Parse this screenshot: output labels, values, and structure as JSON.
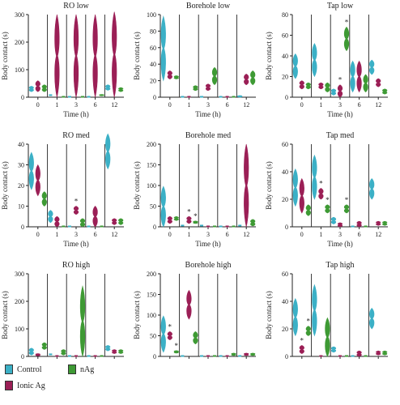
{
  "colors": {
    "control": "#3bb0c6",
    "ionic": "#9b1f56",
    "nag": "#3e9a34",
    "axis": "#222222"
  },
  "legend": {
    "items": [
      {
        "key": "control",
        "label": "Control"
      },
      {
        "key": "nag",
        "label": "nAg"
      },
      {
        "key": "ionic",
        "label": "Ionic Ag"
      }
    ]
  },
  "chart_data": [
    {
      "title": "RO low",
      "type": "violin",
      "ylabel": "Body contact (s)",
      "xlabel": "Time (h)",
      "categories": [
        "0",
        "1",
        "3",
        "6",
        "12"
      ],
      "ylim": [
        0,
        300
      ],
      "yticks": [
        0,
        100,
        200,
        300
      ],
      "series": [
        {
          "name": "Control",
          "values": [
            [
              20,
              40
            ],
            [
              2,
              6
            ],
            [
              0,
              0
            ],
            [
              0,
              0
            ],
            [
              25,
              45
            ]
          ]
        },
        {
          "name": "Ionic Ag",
          "values": [
            [
              20,
              60
            ],
            [
              0,
              300
            ],
            [
              0,
              300
            ],
            [
              0,
              300
            ],
            [
              0,
              310
            ]
          ]
        },
        {
          "name": "nAg",
          "values": [
            [
              20,
              45
            ],
            [
              0,
              0
            ],
            [
              0,
              0
            ],
            [
              5,
              10
            ],
            [
              20,
              35
            ]
          ]
        }
      ],
      "sig": []
    },
    {
      "title": "Borehole low",
      "type": "violin",
      "ylabel": "Body contact (s)",
      "xlabel": "Time (h)",
      "categories": [
        "0",
        "1",
        "3",
        "6",
        "12"
      ],
      "ylim": [
        0,
        100
      ],
      "yticks": [
        0,
        20,
        40,
        60,
        80,
        100
      ],
      "series": [
        {
          "name": "Control",
          "values": [
            [
              20,
              98
            ],
            [
              0,
              0
            ],
            [
              0,
              0
            ],
            [
              0,
              0
            ],
            [
              0,
              2
            ]
          ]
        },
        {
          "name": "Ionic Ag",
          "values": [
            [
              22,
              32
            ],
            [
              0,
              0
            ],
            [
              8,
              16
            ],
            [
              0,
              0
            ],
            [
              15,
              28
            ]
          ]
        },
        {
          "name": "nAg",
          "values": [
            [
              22,
              26
            ],
            [
              8,
              14
            ],
            [
              15,
              36
            ],
            [
              0,
              0
            ],
            [
              15,
              32
            ]
          ]
        }
      ],
      "sig": []
    },
    {
      "title": "Tap low",
      "type": "violin",
      "ylabel": "Body contact (s)",
      "xlabel": "Time (h)",
      "categories": [
        "0",
        "1",
        "3",
        "6",
        "12"
      ],
      "ylim": [
        0,
        80
      ],
      "yticks": [
        0,
        20,
        40,
        60,
        80
      ],
      "series": [
        {
          "name": "Control",
          "values": [
            [
              18,
              42
            ],
            [
              20,
              52
            ],
            [
              2,
              8
            ],
            [
              5,
              35
            ],
            [
              22,
              36
            ]
          ]
        },
        {
          "name": "Ionic Ag",
          "values": [
            [
              8,
              16
            ],
            [
              8,
              14
            ],
            [
              0,
              12
            ],
            [
              5,
              35
            ],
            [
              10,
              18
            ]
          ]
        },
        {
          "name": "nAg",
          "values": [
            [
              8,
              14
            ],
            [
              5,
              14
            ],
            [
              45,
              68
            ],
            [
              5,
              22
            ],
            [
              3,
              8
            ]
          ]
        }
      ],
      "sig": [
        {
          "cat": "3",
          "series": "Ionic Ag",
          "marks": [
            "*"
          ]
        },
        {
          "cat": "3",
          "series": "nAg",
          "marks": [
            "*"
          ]
        }
      ]
    },
    {
      "title": "RO med",
      "type": "violin",
      "ylabel": "Body contact (s)",
      "xlabel": "Time (h)",
      "categories": [
        "0",
        "1",
        "3",
        "6",
        "12"
      ],
      "ylim": [
        0,
        40
      ],
      "yticks": [
        0,
        10,
        20,
        30,
        40
      ],
      "series": [
        {
          "name": "Control",
          "values": [
            [
              18,
              36
            ],
            [
              2,
              8
            ],
            [
              0,
              0
            ],
            [
              0,
              0
            ],
            [
              28,
              45
            ]
          ]
        },
        {
          "name": "Ionic Ag",
          "values": [
            [
              15,
              30
            ],
            [
              0,
              5
            ],
            [
              6,
              10
            ],
            [
              0,
              10
            ],
            [
              1,
              4
            ]
          ]
        },
        {
          "name": "nAg",
          "values": [
            [
              10,
              17
            ],
            [
              0,
              0
            ],
            [
              0,
              4
            ],
            [
              0,
              0
            ],
            [
              1,
              4
            ]
          ]
        }
      ],
      "sig": [
        {
          "cat": "3",
          "series": "Ionic Ag",
          "marks": [
            "*"
          ]
        }
      ]
    },
    {
      "title": "Borehole med",
      "type": "violin",
      "ylabel": "Body contact (s)",
      "xlabel": "Time (h)",
      "categories": [
        "0",
        "1",
        "3",
        "6",
        "12"
      ],
      "ylim": [
        0,
        200
      ],
      "yticks": [
        0,
        50,
        100,
        150,
        200
      ],
      "series": [
        {
          "name": "Control",
          "values": [
            [
              0,
              98
            ],
            [
              0,
              2
            ],
            [
              0,
              2
            ],
            [
              0,
              0
            ],
            [
              0,
              2
            ]
          ]
        },
        {
          "name": "Ionic Ag",
          "values": [
            [
              8,
              25
            ],
            [
              8,
              25
            ],
            [
              0,
              0
            ],
            [
              0,
              0
            ],
            [
              0,
              200
            ]
          ]
        },
        {
          "name": "nAg",
          "values": [
            [
              15,
              25
            ],
            [
              8,
              14
            ],
            [
              0,
              0
            ],
            [
              0,
              0
            ],
            [
              2,
              18
            ]
          ]
        }
      ],
      "sig": [
        {
          "cat": "1",
          "series": "Ionic Ag",
          "marks": [
            "*"
          ]
        },
        {
          "cat": "1",
          "series": "nAg",
          "marks": [
            "*"
          ]
        }
      ]
    },
    {
      "title": "Tap med",
      "type": "violin",
      "ylabel": "Body contact (s)",
      "xlabel": "Time (h)",
      "categories": [
        "0",
        "1",
        "3",
        "6",
        "12"
      ],
      "ylim": [
        0,
        60
      ],
      "yticks": [
        0,
        20,
        40,
        60
      ],
      "series": [
        {
          "name": "Control",
          "values": [
            [
              15,
              42
            ],
            [
              20,
              52
            ],
            [
              2,
              7
            ],
            [
              0,
              0
            ],
            [
              20,
              35
            ]
          ]
        },
        {
          "name": "Ionic Ag",
          "values": [
            [
              10,
              35
            ],
            [
              20,
              28
            ],
            [
              0,
              3
            ],
            [
              0,
              4
            ],
            [
              1,
              4
            ]
          ]
        },
        {
          "name": "nAg",
          "values": [
            [
              8,
              16
            ],
            [
              10,
              16
            ],
            [
              10,
              16
            ],
            [
              0,
              0
            ],
            [
              1,
              4
            ]
          ]
        }
      ],
      "sig": [
        {
          "cat": "1",
          "series": "Ionic Ag",
          "marks": [
            "*"
          ]
        },
        {
          "cat": "1",
          "series": "nAg",
          "marks": [
            "*"
          ]
        },
        {
          "cat": "3",
          "series": "nAg",
          "marks": [
            "*"
          ]
        }
      ]
    },
    {
      "title": "RO high",
      "type": "violin",
      "ylabel": "Body contact (s)",
      "xlabel": "Time (h)",
      "categories": [
        "0",
        "1",
        "3",
        "6",
        "12"
      ],
      "ylim": [
        0,
        300
      ],
      "yticks": [
        0,
        100,
        200,
        300
      ],
      "series": [
        {
          "name": "Control",
          "values": [
            [
              5,
              30
            ],
            [
              2,
              6
            ],
            [
              0,
              0
            ],
            [
              0,
              0
            ],
            [
              20,
              40
            ]
          ]
        },
        {
          "name": "Ionic Ag",
          "values": [
            [
              2,
              10
            ],
            [
              0,
              0
            ],
            [
              0,
              0
            ],
            [
              0,
              0
            ],
            [
              10,
              25
            ]
          ]
        },
        {
          "name": "nAg",
          "values": [
            [
              25,
              50
            ],
            [
              5,
              25
            ],
            [
              0,
              255
            ],
            [
              0,
              0
            ],
            [
              10,
              25
            ]
          ]
        }
      ],
      "sig": []
    },
    {
      "title": "Borehole high",
      "type": "violin",
      "ylabel": "Body contact (s)",
      "xlabel": "Time (h)",
      "categories": [
        "0",
        "1",
        "3",
        "6",
        "12"
      ],
      "ylim": [
        0,
        200
      ],
      "yticks": [
        0,
        50,
        100,
        150,
        200
      ],
      "series": [
        {
          "name": "Control",
          "values": [
            [
              10,
              98
            ],
            [
              0,
              0
            ],
            [
              0,
              0
            ],
            [
              0,
              0
            ],
            [
              0,
              0
            ]
          ]
        },
        {
          "name": "Ionic Ag",
          "values": [
            [
              40,
              60
            ],
            [
              90,
              160
            ],
            [
              0,
              0
            ],
            [
              0,
              0
            ],
            [
              2,
              8
            ]
          ]
        },
        {
          "name": "nAg",
          "values": [
            [
              8,
              14
            ],
            [
              30,
              60
            ],
            [
              0,
              0
            ],
            [
              2,
              8
            ],
            [
              2,
              8
            ]
          ]
        }
      ],
      "sig": [
        {
          "cat": "0",
          "series": "Ionic Ag",
          "marks": [
            "*"
          ]
        },
        {
          "cat": "0",
          "series": "nAg",
          "marks": [
            "*"
          ]
        }
      ]
    },
    {
      "title": "Tap high",
      "type": "violin",
      "ylabel": "Body contact (s)",
      "xlabel": "Time (h)",
      "categories": [
        "0",
        "1",
        "3",
        "6",
        "12"
      ],
      "ylim": [
        0,
        60
      ],
      "yticks": [
        0,
        20,
        40,
        60
      ],
      "series": [
        {
          "name": "Control",
          "values": [
            [
              15,
              42
            ],
            [
              15,
              52
            ],
            [
              3,
              7
            ],
            [
              0,
              0
            ],
            [
              20,
              35
            ]
          ]
        },
        {
          "name": "Ionic Ag",
          "values": [
            [
              2,
              8
            ],
            [
              0,
              0
            ],
            [
              0,
              0
            ],
            [
              0,
              4
            ],
            [
              1,
              4
            ]
          ]
        },
        {
          "name": "nAg",
          "values": [
            [
              15,
              22
            ],
            [
              0,
              28
            ],
            [
              0,
              0
            ],
            [
              0,
              0
            ],
            [
              1,
              4
            ]
          ]
        }
      ],
      "sig": [
        {
          "cat": "0",
          "series": "Ionic Ag",
          "marks": [
            "*"
          ]
        },
        {
          "cat": "0",
          "series": "nAg",
          "marks": [
            "*"
          ]
        }
      ]
    }
  ]
}
